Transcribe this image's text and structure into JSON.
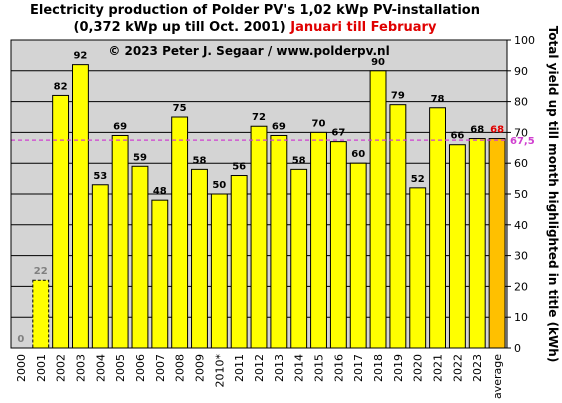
{
  "title": {
    "line1": "Electricity production  of Polder  PV's  1,02 kWp PV-installation",
    "line2": "(0,372 kWp up till Oct. 2001)",
    "period": "Januari till February"
  },
  "colors": {
    "background": "#ffffff",
    "plot_area": "#d4d4d4",
    "bar": "#ffff00",
    "average_bar": "#ffc000",
    "grid": "#000000",
    "reference_line": "#d040d0",
    "average_label": "#e00000",
    "partial_label": "#808080"
  },
  "chart_data": {
    "type": "bar",
    "copyright": "© 2023 Peter J. Segaar / www.polderpv.nl",
    "categories": [
      "2000",
      "2001",
      "2002",
      "2003",
      "2004",
      "2005",
      "2006",
      "2007",
      "2008",
      "2009",
      "2010*",
      "2011",
      "2012",
      "2013",
      "2014",
      "2015",
      "2016",
      "2017",
      "2018",
      "2019",
      "2020",
      "2021",
      "2022",
      "2023",
      "average"
    ],
    "values": [
      0,
      22,
      82,
      92,
      53,
      69,
      59,
      48,
      75,
      58,
      50,
      56,
      72,
      69,
      58,
      70,
      67,
      60,
      90,
      79,
      52,
      78,
      66,
      68,
      68
    ],
    "value_labels": [
      "0",
      "22",
      "82",
      "92",
      "53",
      "69",
      "59",
      "48",
      "75",
      "58",
      "50",
      "56",
      "72",
      "69",
      "58",
      "70",
      "67",
      "60",
      "90",
      "79",
      "52",
      "78",
      "66",
      "68",
      "68"
    ],
    "partial_years": [
      "2001"
    ],
    "highlight_category": "average",
    "reference_line": {
      "value": 67.5,
      "label": "67,5",
      "style": "dashed"
    },
    "ylabel": "Total yield up till month highlighted in title (kWh)",
    "y_axis_side": "right",
    "ylim": [
      0,
      100
    ],
    "yticks": [
      0,
      10,
      20,
      30,
      40,
      50,
      60,
      70,
      80,
      90,
      100
    ],
    "grid": "horizontal",
    "legend": "none"
  }
}
